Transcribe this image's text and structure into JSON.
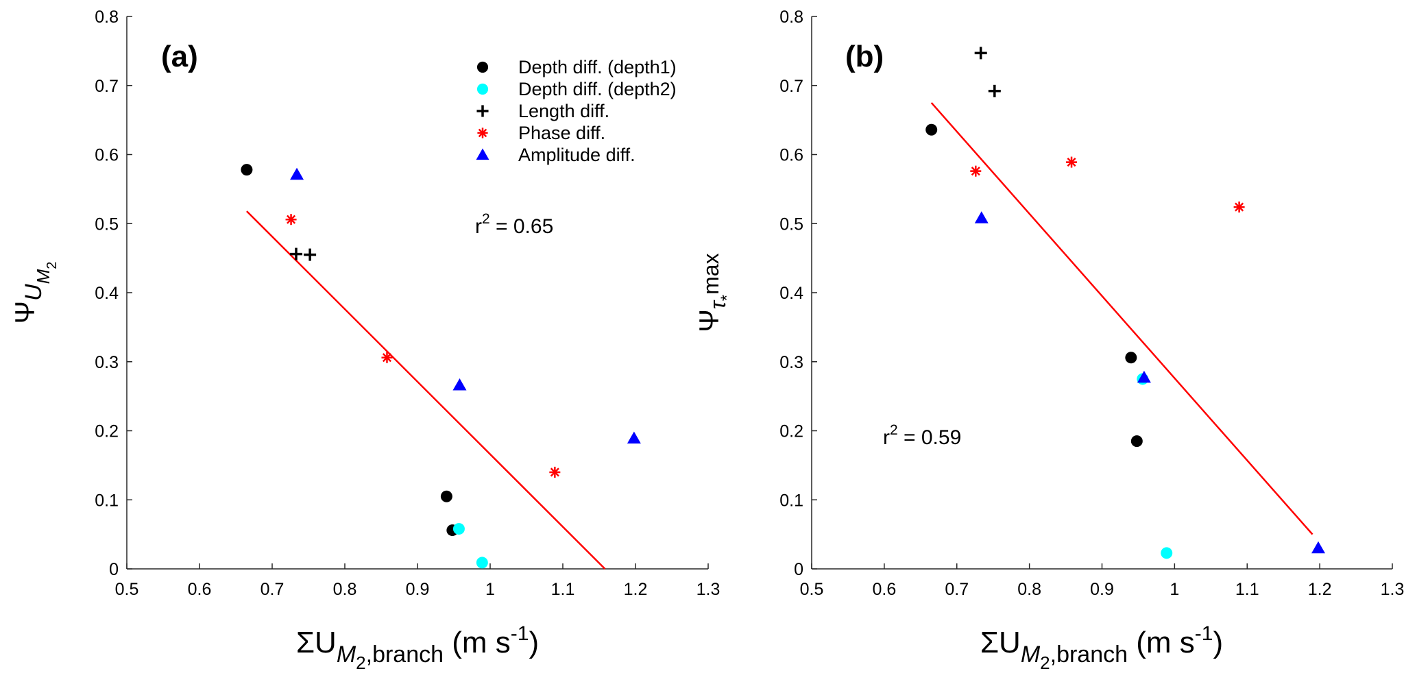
{
  "chart_data": [
    {
      "type": "scatter",
      "panel_label": "(a)",
      "xlim": [
        0.5,
        1.3
      ],
      "ylim": [
        0,
        0.8
      ],
      "x_ticks": [
        "0.5",
        "0.6",
        "0.7",
        "0.8",
        "0.9",
        "1",
        "1.1",
        "1.2",
        "1.3"
      ],
      "y_ticks": [
        "0",
        "0.1",
        "0.2",
        "0.3",
        "0.4",
        "0.5",
        "0.6",
        "0.7",
        "0.8"
      ],
      "xlabel": {
        "main": "ΣU",
        "sub1": "M",
        "sub2": "2",
        "sub3": ",branch",
        "unit": " (m s",
        "sup": "-1",
        "close": ")"
      },
      "ylabel": {
        "main": "Ψ",
        "sub": "U",
        "subsub": "M",
        "subsubsub": "2"
      },
      "r2": {
        "base": "r",
        "sup": "2",
        "rest": " = 0.65"
      },
      "legend": [
        {
          "label": "Depth diff. (depth1)",
          "marker": "circle",
          "color": "#000000"
        },
        {
          "label": "Depth diff. (depth2)",
          "marker": "circle",
          "color": "#00ffff"
        },
        {
          "label": "Length diff.",
          "marker": "plus",
          "color": "#000000"
        },
        {
          "label": "Phase diff.",
          "marker": "asterisk",
          "color": "#ff0000"
        },
        {
          "label": "Amplitude diff.",
          "marker": "triangle",
          "color": "#0000ff"
        }
      ],
      "series": [
        {
          "name": "Depth diff. (depth1)",
          "marker": "circle",
          "color": "#000000",
          "points": [
            [
              0.665,
              0.578
            ],
            [
              0.94,
              0.105
            ],
            [
              0.948,
              0.056
            ]
          ]
        },
        {
          "name": "Depth diff. (depth2)",
          "marker": "circle",
          "color": "#00ffff",
          "points": [
            [
              0.957,
              0.058
            ],
            [
              0.989,
              0.009
            ]
          ]
        },
        {
          "name": "Length diff.",
          "marker": "plus",
          "color": "#000000",
          "points": [
            [
              0.733,
              0.456
            ],
            [
              0.752,
              0.455
            ]
          ]
        },
        {
          "name": "Phase diff.",
          "marker": "asterisk",
          "color": "#ff0000",
          "points": [
            [
              0.726,
              0.506
            ],
            [
              0.858,
              0.306
            ],
            [
              1.089,
              0.14
            ]
          ]
        },
        {
          "name": "Amplitude diff.",
          "marker": "triangle",
          "color": "#0000ff",
          "points": [
            [
              0.734,
              0.571
            ],
            [
              0.958,
              0.266
            ],
            [
              1.198,
              0.189
            ]
          ]
        }
      ],
      "fit_line": {
        "color": "#ff0000",
        "x": [
          0.665,
          1.158
        ],
        "y": [
          0.518,
          0.0
        ]
      }
    },
    {
      "type": "scatter",
      "panel_label": "(b)",
      "xlim": [
        0.5,
        1.3
      ],
      "ylim": [
        0,
        0.8
      ],
      "x_ticks": [
        "0.5",
        "0.6",
        "0.7",
        "0.8",
        "0.9",
        "1",
        "1.1",
        "1.2",
        "1.3"
      ],
      "y_ticks": [
        "0",
        "0.1",
        "0.2",
        "0.3",
        "0.4",
        "0.5",
        "0.6",
        "0.7",
        "0.8"
      ],
      "xlabel": {
        "main": "ΣU",
        "sub1": "M",
        "sub2": "2",
        "sub3": ",branch",
        "unit": " (m s",
        "sup": "-1",
        "close": ")"
      },
      "ylabel": {
        "main": "Ψ",
        "sub": "τ",
        "subsub": "*",
        "rest": "max"
      },
      "r2": {
        "base": "r",
        "sup": "2",
        "rest": " = 0.59"
      },
      "series": [
        {
          "name": "Depth diff. (depth1)",
          "marker": "circle",
          "color": "#000000",
          "points": [
            [
              0.665,
              0.636
            ],
            [
              0.94,
              0.306
            ],
            [
              0.948,
              0.185
            ]
          ]
        },
        {
          "name": "Depth diff. (depth2)",
          "marker": "circle",
          "color": "#00ffff",
          "points": [
            [
              0.956,
              0.275
            ],
            [
              0.989,
              0.023
            ]
          ]
        },
        {
          "name": "Length diff.",
          "marker": "plus",
          "color": "#000000",
          "points": [
            [
              0.733,
              0.747
            ],
            [
              0.752,
              0.692
            ]
          ]
        },
        {
          "name": "Phase diff.",
          "marker": "asterisk",
          "color": "#ff0000",
          "points": [
            [
              0.726,
              0.576
            ],
            [
              0.858,
              0.589
            ],
            [
              1.089,
              0.524
            ]
          ]
        },
        {
          "name": "Amplitude diff.",
          "marker": "triangle",
          "color": "#0000ff",
          "points": [
            [
              0.734,
              0.508
            ],
            [
              0.958,
              0.277
            ],
            [
              1.198,
              0.03
            ]
          ]
        }
      ],
      "fit_line": {
        "color": "#ff0000",
        "x": [
          0.665,
          1.19
        ],
        "y": [
          0.675,
          0.05
        ]
      }
    }
  ]
}
